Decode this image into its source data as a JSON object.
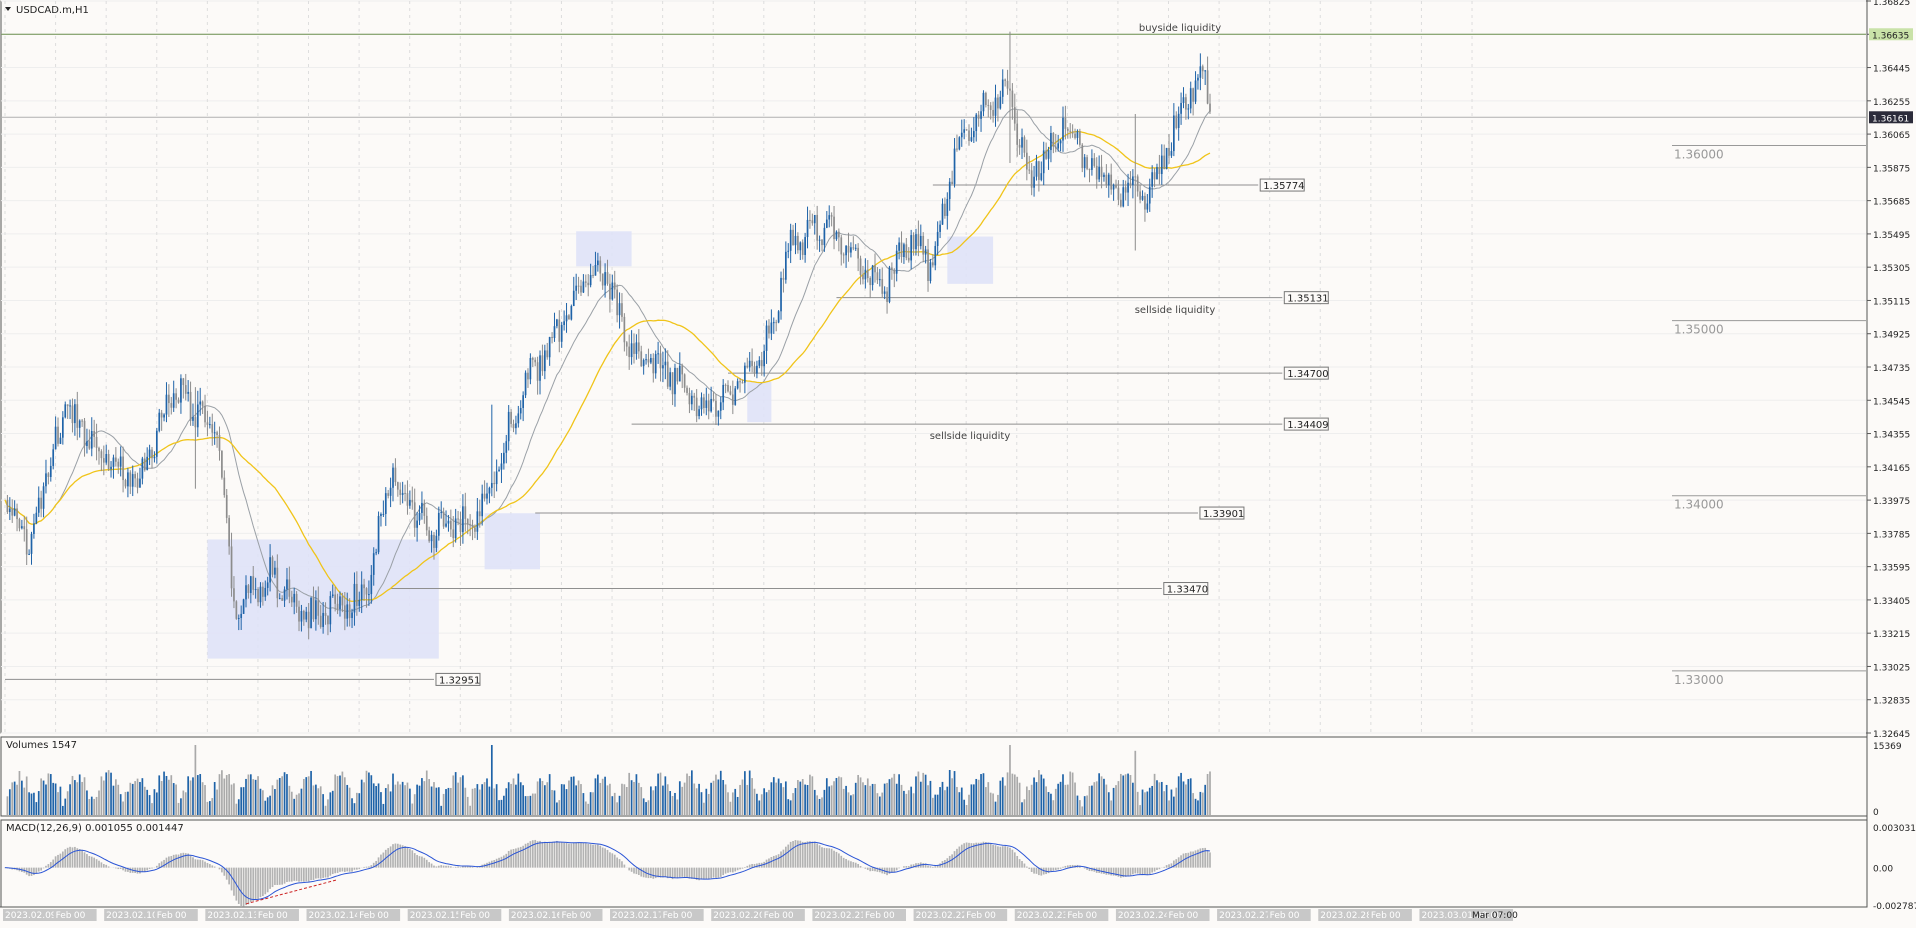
{
  "chart_data": [
    {
      "type": "candlestick",
      "title": "USDCAD.m,H1",
      "ylim": [
        1.32645,
        1.36825
      ],
      "y_ticks": [
        "1.36825",
        "1.36635",
        "1.36445",
        "1.36255",
        "1.36065",
        "1.35875",
        "1.35685",
        "1.35495",
        "1.35305",
        "1.35115",
        "1.34925",
        "1.34735",
        "1.34545",
        "1.34355",
        "1.34165",
        "1.33975",
        "1.33785",
        "1.33595",
        "1.33405",
        "1.33215",
        "1.33025",
        "1.32835",
        "1.32645"
      ],
      "current_price": "1.36161",
      "highlight_price": "1.36635",
      "x_labels": [
        "2023.02.09 00:00",
        "Feb",
        "2023.02.10 00:00",
        "Feb",
        "2023.02.13 00:00",
        "Feb",
        "2023.02.14 00:00",
        "Feb",
        "2023.02.15 00:00",
        "Feb",
        "2023.02.16 00:00",
        "Feb",
        "2023.02.17 00:00",
        "Feb",
        "2023.02.20 00:00",
        "Feb",
        "2023.02.21 00:00",
        "Feb",
        "2023.02.22 00:00",
        "Feb",
        "2023.02.23 00:00",
        "Feb",
        "2023.02.24 00:00",
        "Feb",
        "2023.02.27 00:00",
        "Feb",
        "2023.02.28 00:00",
        "Feb",
        "2023.03.01 00:00",
        "Mar 07:00"
      ],
      "anchors": [
        [
          0,
          1.3395
        ],
        [
          10,
          1.3372
        ],
        [
          25,
          1.345
        ],
        [
          55,
          1.3405
        ],
        [
          70,
          1.3463
        ],
        [
          88,
          1.3435
        ],
        [
          95,
          1.3335
        ],
        [
          110,
          1.3355
        ],
        [
          125,
          1.333
        ],
        [
          150,
          1.3343
        ],
        [
          160,
          1.3412
        ],
        [
          175,
          1.338
        ],
        [
          195,
          1.3385
        ],
        [
          215,
          1.346
        ],
        [
          240,
          1.352
        ],
        [
          247,
          1.3535
        ],
        [
          260,
          1.348
        ],
        [
          280,
          1.3465
        ],
        [
          290,
          1.3448
        ],
        [
          305,
          1.3465
        ],
        [
          315,
          1.348
        ],
        [
          325,
          1.354
        ],
        [
          340,
          1.3555
        ],
        [
          355,
          1.353
        ],
        [
          365,
          1.352
        ],
        [
          375,
          1.3545
        ],
        [
          385,
          1.353
        ],
        [
          395,
          1.36
        ],
        [
          415,
          1.3635
        ],
        [
          425,
          1.358
        ],
        [
          440,
          1.3615
        ],
        [
          450,
          1.359
        ],
        [
          462,
          1.3575
        ],
        [
          475,
          1.3575
        ],
        [
          490,
          1.3625
        ],
        [
          497,
          1.3645
        ],
        [
          500,
          1.3617
        ]
      ],
      "events": [
        [
          79,
          1.3404,
          1.3462
        ],
        [
          202,
          1.34,
          1.3452
        ],
        [
          417,
          1.359,
          1.3665
        ],
        [
          469,
          1.354,
          1.3618
        ]
      ],
      "horizontal_levels": [
        {
          "price": 1.32951,
          "label": "1.32951"
        },
        {
          "price": 1.3347,
          "label": "1.33470"
        },
        {
          "price": 1.33901,
          "label": "1.33901"
        },
        {
          "price": 1.34409,
          "label": "1.34409"
        },
        {
          "price": 1.347,
          "label": "1.34700"
        },
        {
          "price": 1.35131,
          "label": "1.35131"
        },
        {
          "price": 1.35774,
          "label": "1.35774"
        }
      ],
      "round_levels": [
        {
          "price": 1.36,
          "label": "1.36000"
        },
        {
          "price": 1.35,
          "label": "1.35000"
        },
        {
          "price": 1.34,
          "label": "1.34000"
        },
        {
          "price": 1.33,
          "label": "1.33000"
        }
      ],
      "annotations": [
        "buyside liquidity",
        "sellside liquidity",
        "sellside liquidity"
      ],
      "moving_averages": [
        {
          "period": 21,
          "color": "#9aa0a6"
        },
        {
          "period": 50,
          "color": "#f0c419"
        }
      ],
      "colors": {
        "bull": "#1f63a8",
        "bear": "#8c8c8c",
        "zone": "#dfe2f7",
        "level": "#8f8f8f",
        "price_label_bg": "#2b2b3a",
        "highlight_label_bg": "#c9e2a8"
      }
    },
    {
      "type": "bar",
      "title": "Volumes 1547",
      "ylim": [
        0,
        15369
      ],
      "y_ticks": [
        "15369",
        "0"
      ],
      "colors": {
        "up": "#1f63a8",
        "down": "#a9a9a9"
      }
    },
    {
      "type": "bar+line",
      "title": "MACD(12,26,9) 0.001055 0.001447",
      "ylim": [
        -0.002787,
        0.003031
      ],
      "y_ticks": [
        "0.003031",
        "0.00",
        "-0.002787"
      ],
      "colors": {
        "histogram": "#b3b3b3",
        "signal": "#2b55d6",
        "divergence": "#cc2222"
      }
    }
  ]
}
